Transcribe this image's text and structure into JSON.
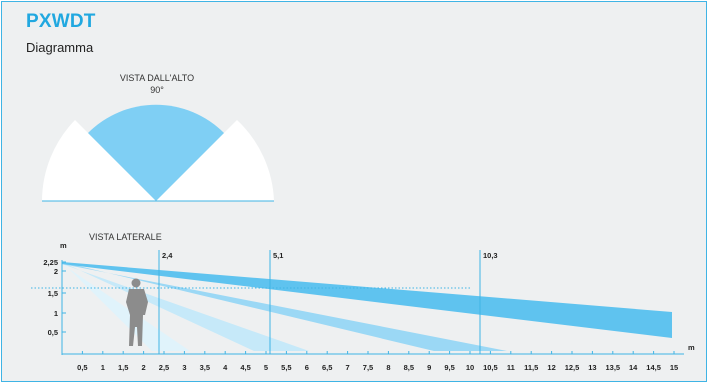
{
  "header": {
    "title": "PXWDT",
    "subtitle": "Diagramma"
  },
  "top_view": {
    "label": "VISTA DALL'ALTO",
    "angle": "90°",
    "colors": {
      "zone": "#7fcff4",
      "background": "#ffffff"
    }
  },
  "side_view": {
    "label": "VISTA LATERALE",
    "y_unit": "m",
    "x_unit": "m",
    "y_ticks": [
      "2,25",
      "2",
      "1,5",
      "1",
      "0,5"
    ],
    "x_ticks": [
      "0,5",
      "1",
      "1,5",
      "2",
      "2,5",
      "3",
      "3,5",
      "4",
      "4,5",
      "5",
      "5,5",
      "6",
      "6,5",
      "7",
      "7,5",
      "8",
      "8,5",
      "9",
      "9,5",
      "10",
      "10,5",
      "11",
      "11,5",
      "12",
      "12,5",
      "13",
      "13,5",
      "14",
      "14,5",
      "15"
    ],
    "markers": [
      "2,4",
      "5,1",
      "10,3"
    ],
    "colors": {
      "beam_dark": "#5fc3ef",
      "beam_mid": "#9bd8f5",
      "beam_light": "#c6e9f9",
      "beam_faint": "#e0f3fb",
      "axis": "#3fb4e5",
      "person": "#8c8c8c"
    }
  }
}
